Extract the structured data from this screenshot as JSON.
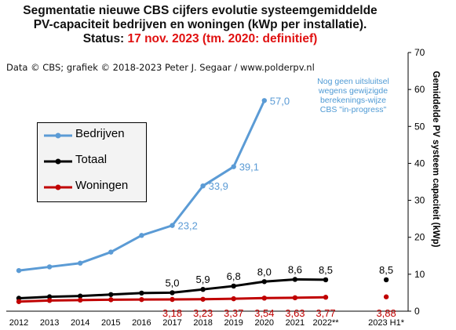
{
  "title": {
    "line1": "Segmentatie nieuwe CBS cijfers evolutie systeemgemiddelde",
    "line2": "PV-capaciteit bedrijven en woningen (kWp per installatie).",
    "line3_prefix": "Status: ",
    "line3_status": "17 nov. 2023 (tm. 2020: definitief)"
  },
  "credit": "Data © CBS; grafiek © 2018-2023  Peter J. Segaar / www.polderpv.nl",
  "note": [
    "Nog geen uitsluitsel",
    "wegens gewijzigde",
    "berekenings-wijze",
    "CBS \"in-progress\""
  ],
  "colors": {
    "bedrijven": "#5b9bd5",
    "totaal": "#000000",
    "woningen": "#c00000",
    "title_status": "#e01010",
    "note": "#4f9ad4",
    "legend_bg": "#f3f3f3"
  },
  "chart_data": {
    "type": "line",
    "categories": [
      "2012",
      "2013",
      "2014",
      "2015",
      "2016",
      "2017",
      "2018",
      "2019",
      "2020",
      "2021",
      "2022**",
      "2023 H1*"
    ],
    "ylabel": "Gemiddelde PV systeem capaciteit (kWp)",
    "ylim": [
      0,
      70
    ],
    "yticks": [
      "0",
      "10",
      "20",
      "30",
      "40",
      "50",
      "60",
      "70"
    ],
    "y_axis_side": "right",
    "legend_placement": "left",
    "grid": false,
    "series": [
      {
        "name": "Bedrijven",
        "color": "#5b9bd5",
        "values": [
          11.0,
          12.0,
          13.0,
          16.0,
          20.5,
          23.2,
          33.9,
          39.1,
          57.0,
          null,
          null,
          null
        ],
        "labels": [
          null,
          null,
          null,
          null,
          null,
          "23,2",
          "33,9",
          "39,1",
          "57,0",
          null,
          null,
          null
        ]
      },
      {
        "name": "Totaal",
        "color": "#000000",
        "values": [
          3.5,
          3.9,
          4.1,
          4.5,
          4.9,
          5.0,
          5.9,
          6.8,
          8.0,
          8.6,
          8.5,
          8.5
        ],
        "labels": [
          null,
          null,
          null,
          null,
          null,
          "5,0",
          "5,9",
          "6,8",
          "8,0",
          "8,6",
          "8,5",
          "8,5"
        ],
        "separate_last": true
      },
      {
        "name": "Woningen",
        "color": "#c00000",
        "values": [
          2.6,
          2.9,
          3.0,
          3.1,
          3.15,
          3.18,
          3.23,
          3.37,
          3.54,
          3.63,
          3.77,
          3.88
        ],
        "labels": [
          null,
          null,
          null,
          null,
          null,
          "3,18",
          "3,23",
          "3,37",
          "3,54",
          "3,63",
          "3,77",
          "3,88"
        ],
        "separate_last": true
      }
    ]
  }
}
